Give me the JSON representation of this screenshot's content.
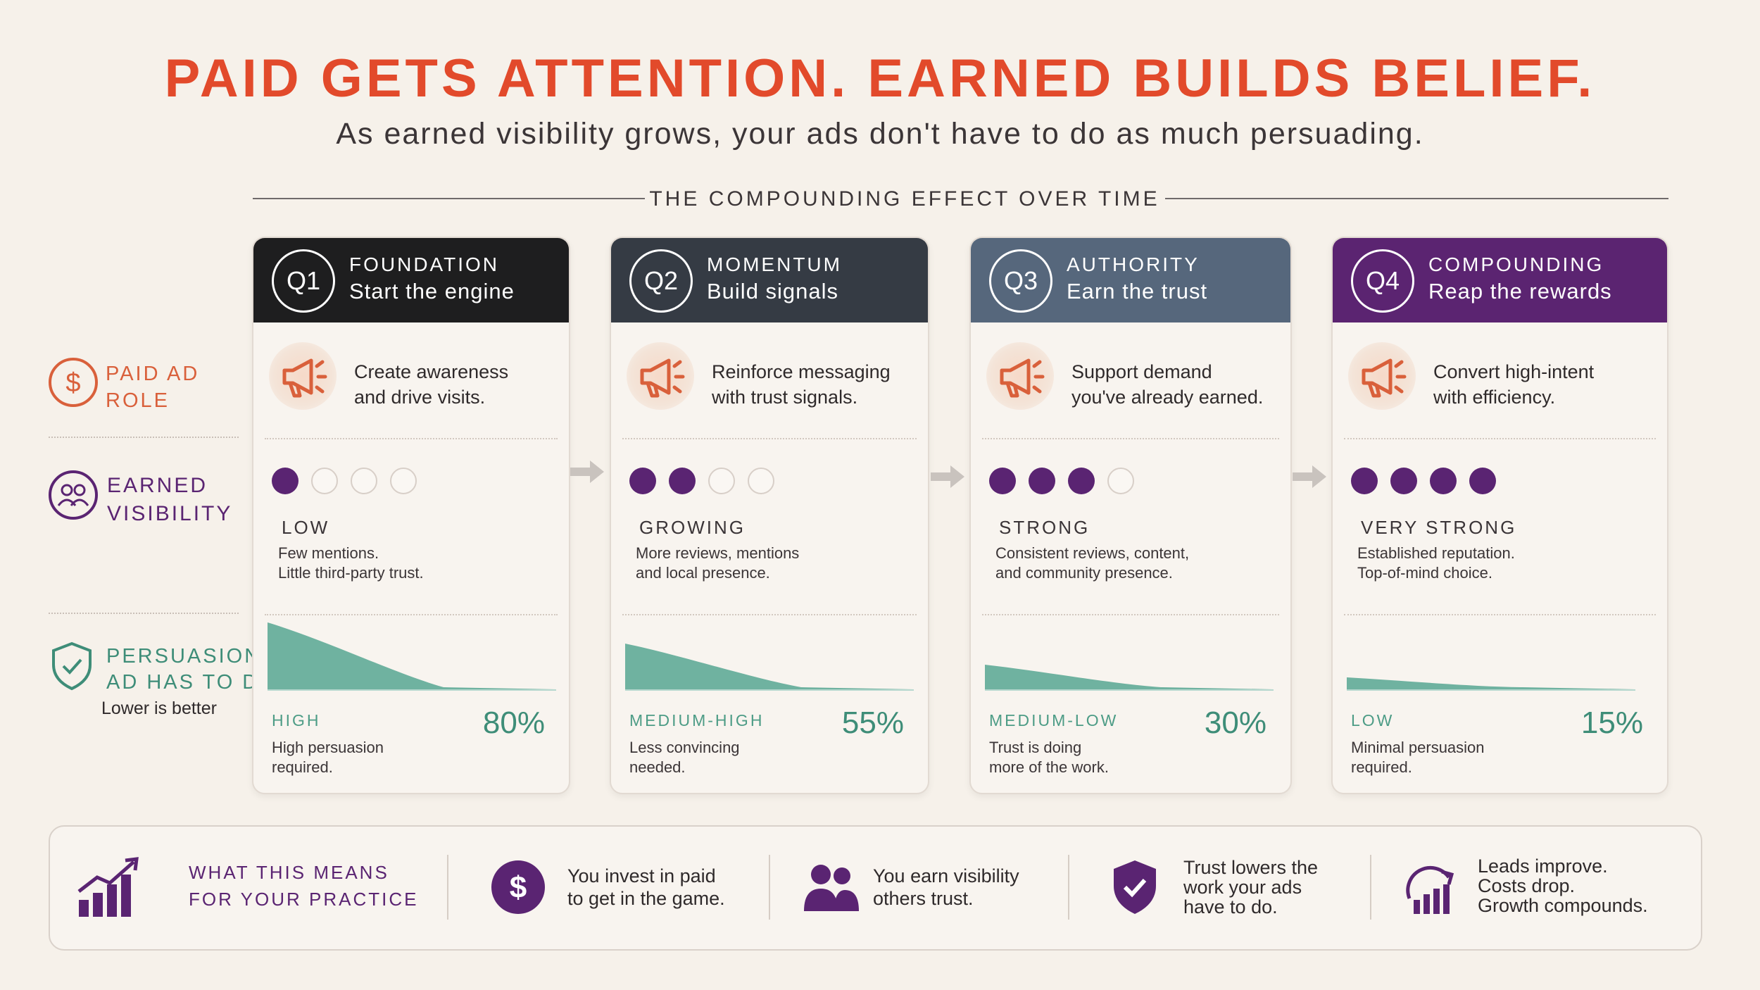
{
  "header": {
    "title": "PAID GETS ATTENTION. EARNED BUILDS BELIEF.",
    "subtitle": "As earned visibility grows, your ads don't have to do as much persuading.",
    "section_title": "THE COMPOUNDING EFFECT OVER TIME"
  },
  "rows": {
    "paid": {
      "line1": "PAID AD",
      "line2": "ROLE",
      "icon": "dollar-circle-icon",
      "color": "#d9603b"
    },
    "earned": {
      "line1": "EARNED",
      "line2": "VISIBILITY",
      "icon": "people-circle-icon",
      "color": "#5a2472"
    },
    "persuasion": {
      "line1": "PERSUASION",
      "line2": "AD HAS TO DO",
      "note": "Lower is better",
      "icon": "shield-check-icon",
      "color": "#3e8d78"
    }
  },
  "stages": [
    {
      "q": "Q1",
      "name": "FOUNDATION",
      "subtitle": "Start the engine",
      "header_color": "#1e1e1f",
      "ad_line1": "Create awareness",
      "ad_line2": "and drive visits.",
      "dots_filled": 1,
      "dots_total": 4,
      "visibility": "LOW",
      "vis_line1": "Few mentions.",
      "vis_line2": "Little third-party trust.",
      "persuasion_level": "HIGH",
      "persuasion_pct": "80%",
      "persuasion_value": 80,
      "p_line1": "High persuasion",
      "p_line2": "required."
    },
    {
      "q": "Q2",
      "name": "MOMENTUM",
      "subtitle": "Build signals",
      "header_color": "#353b44",
      "ad_line1": "Reinforce messaging",
      "ad_line2": "with trust signals.",
      "dots_filled": 2,
      "dots_total": 4,
      "visibility": "GROWING",
      "vis_line1": "More reviews, mentions",
      "vis_line2": "and local presence.",
      "persuasion_level": "MEDIUM-HIGH",
      "persuasion_pct": "55%",
      "persuasion_value": 55,
      "p_line1": "Less convincing",
      "p_line2": "needed."
    },
    {
      "q": "Q3",
      "name": "AUTHORITY",
      "subtitle": "Earn the trust",
      "header_color": "#56677c",
      "ad_line1": "Support demand",
      "ad_line2": "you've already earned.",
      "dots_filled": 3,
      "dots_total": 4,
      "visibility": "STRONG",
      "vis_line1": "Consistent reviews, content,",
      "vis_line2": "and community presence.",
      "persuasion_level": "MEDIUM-LOW",
      "persuasion_pct": "30%",
      "persuasion_value": 30,
      "p_line1": "Trust is doing",
      "p_line2": "more of the work."
    },
    {
      "q": "Q4",
      "name": "COMPOUNDING",
      "subtitle": "Reap the rewards",
      "header_color": "#5b2471",
      "ad_line1": "Convert high-intent",
      "ad_line2": "with efficiency.",
      "dots_filled": 4,
      "dots_total": 4,
      "visibility": "VERY STRONG",
      "vis_line1": "Established reputation.",
      "vis_line2": "Top-of-mind choice.",
      "persuasion_level": "LOW",
      "persuasion_pct": "15%",
      "persuasion_value": 15,
      "p_line1": "Minimal persuasion",
      "p_line2": "required."
    }
  ],
  "bottom": {
    "heading_line1": "WHAT THIS MEANS",
    "heading_line2": "FOR YOUR PRACTICE",
    "items": [
      {
        "icon": "dollar-coin-icon",
        "line1": "You invest in paid",
        "line2": "to get in the game.",
        "line3": ""
      },
      {
        "icon": "people-icon",
        "line1": "You earn visibility",
        "line2": "others trust.",
        "line3": ""
      },
      {
        "icon": "shield-check-icon",
        "line1": "Trust lowers the",
        "line2": "work your ads",
        "line3": "have to do."
      },
      {
        "icon": "growth-chart-icon",
        "line1": "Leads improve.",
        "line2": "Costs drop.",
        "line3": "Growth compounds."
      }
    ]
  },
  "colors": {
    "accent_red": "#e24a2b",
    "purple": "#5a2472",
    "teal": "#6fb2a0",
    "teal_text": "#3e8d78"
  }
}
